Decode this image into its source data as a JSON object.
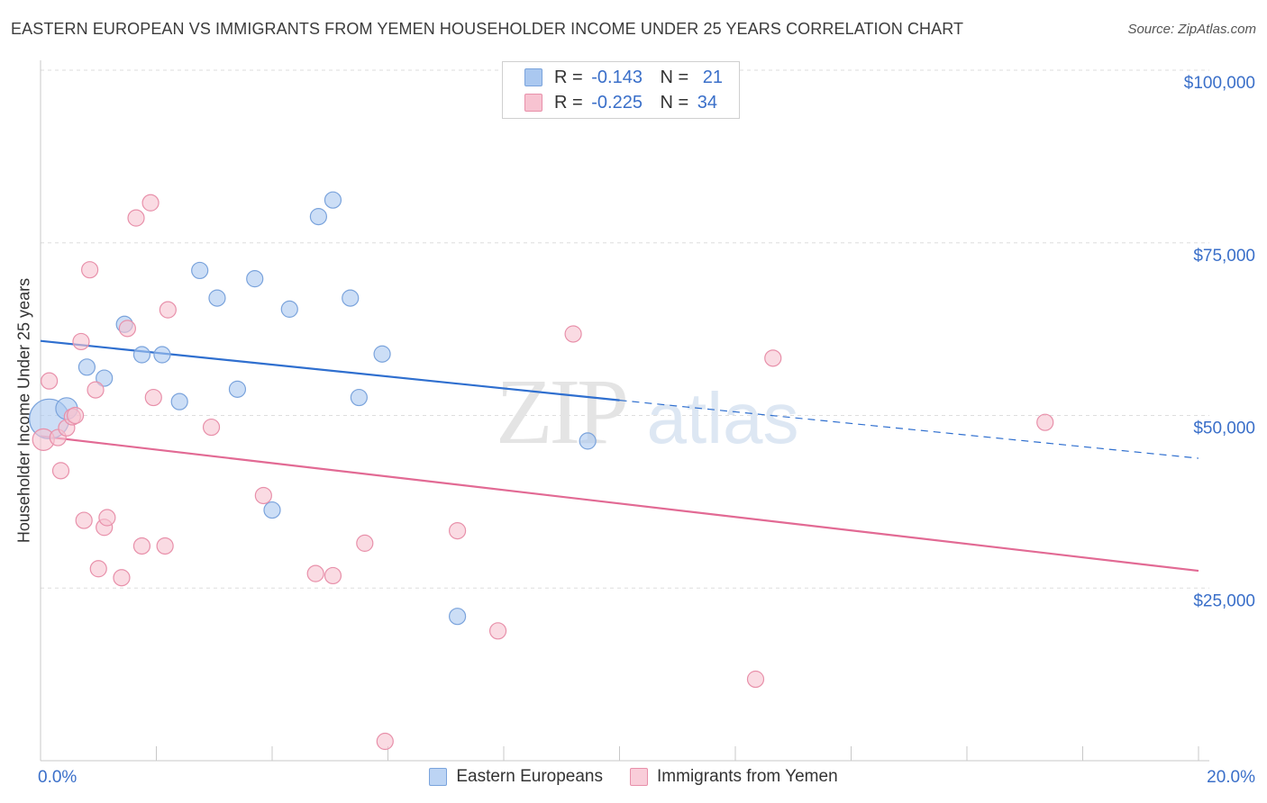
{
  "title": "EASTERN EUROPEAN VS IMMIGRANTS FROM YEMEN HOUSEHOLDER INCOME UNDER 25 YEARS CORRELATION CHART",
  "source": "Source: ZipAtlas.com",
  "watermark": {
    "zip": "ZIP",
    "atlas": "atlas"
  },
  "stats": [
    {
      "r_label": "R =",
      "r_value": "-0.143",
      "n_label": "N =",
      "n_value": "21",
      "color": "#aac8f0",
      "border": "#7aa3dc"
    },
    {
      "r_label": "R =",
      "r_value": "-0.225",
      "n_label": "N =",
      "n_value": "34",
      "color": "#f7c3d1",
      "border": "#e890aa"
    }
  ],
  "legend": [
    {
      "label": "Eastern Europeans",
      "color": "#bcd4f4",
      "border": "#7aa3dc"
    },
    {
      "label": "Immigrants from Yemen",
      "color": "#f9cdd9",
      "border": "#e890aa"
    }
  ],
  "chart_data": {
    "type": "scatter",
    "ylabel": "Householder Income Under 25 years",
    "xlim": [
      0,
      20
    ],
    "ylim": [
      0,
      100000
    ],
    "x_tick_labels": [
      "0.0%",
      "20.0%"
    ],
    "y_ticks": [
      25000,
      50000,
      75000,
      100000
    ],
    "y_tick_labels": [
      "$25,000",
      "$50,000",
      "$75,000",
      "$100,000"
    ],
    "grid": true,
    "series": [
      {
        "name": "Eastern Europeans",
        "color": "#aac8f0",
        "stroke": "#7aa3dc",
        "line_color": "#2f6fcf",
        "trend": {
          "x0": 0,
          "y0": 60800,
          "x1": 10,
          "y1": 52200,
          "dash_to_x": 20,
          "dash_to_y": 43800
        },
        "points": [
          [
            0.15,
            49500,
            22
          ],
          [
            0.45,
            51000,
            12
          ],
          [
            0.8,
            57000,
            9
          ],
          [
            1.1,
            55400,
            9
          ],
          [
            1.45,
            63200,
            9
          ],
          [
            1.75,
            58800,
            9
          ],
          [
            2.1,
            58800,
            9
          ],
          [
            2.4,
            52000,
            9
          ],
          [
            2.75,
            71000,
            9
          ],
          [
            3.05,
            67000,
            9
          ],
          [
            3.4,
            53800,
            9
          ],
          [
            3.7,
            69800,
            9
          ],
          [
            4.0,
            36300,
            9
          ],
          [
            4.3,
            65400,
            9
          ],
          [
            4.8,
            78800,
            9
          ],
          [
            5.05,
            81200,
            9
          ],
          [
            5.35,
            67000,
            9
          ],
          [
            5.5,
            52600,
            9
          ],
          [
            5.9,
            58900,
            9
          ],
          [
            7.2,
            20900,
            9
          ],
          [
            9.45,
            46300,
            9
          ]
        ]
      },
      {
        "name": "Immigrants from Yemen",
        "color": "#f7c3d1",
        "stroke": "#e890aa",
        "line_color": "#e26a94",
        "trend": {
          "x0": 0,
          "y0": 47000,
          "x1": 20,
          "y1": 27500
        },
        "points": [
          [
            0.05,
            46500,
            12
          ],
          [
            0.15,
            55000,
            9
          ],
          [
            0.3,
            46800,
            9
          ],
          [
            0.35,
            42000,
            9
          ],
          [
            0.45,
            48200,
            9
          ],
          [
            0.55,
            49800,
            9
          ],
          [
            0.6,
            50000,
            9
          ],
          [
            0.7,
            60700,
            9
          ],
          [
            0.75,
            34800,
            9
          ],
          [
            0.85,
            71100,
            9
          ],
          [
            0.95,
            53700,
            9
          ],
          [
            1.0,
            27800,
            9
          ],
          [
            1.1,
            33800,
            9
          ],
          [
            1.15,
            35200,
            9
          ],
          [
            1.4,
            26500,
            9
          ],
          [
            1.5,
            62600,
            9
          ],
          [
            1.65,
            78600,
            9
          ],
          [
            1.75,
            31100,
            9
          ],
          [
            1.9,
            80800,
            9
          ],
          [
            1.95,
            52600,
            9
          ],
          [
            2.15,
            31100,
            9
          ],
          [
            2.2,
            65300,
            9
          ],
          [
            2.95,
            48300,
            9
          ],
          [
            3.85,
            38400,
            9
          ],
          [
            4.75,
            27100,
            9
          ],
          [
            5.05,
            26800,
            9
          ],
          [
            5.6,
            31500,
            9
          ],
          [
            5.95,
            2800,
            9
          ],
          [
            7.2,
            33300,
            9
          ],
          [
            7.9,
            18800,
            9
          ],
          [
            9.2,
            61800,
            9
          ],
          [
            12.35,
            11800,
            9
          ],
          [
            12.65,
            58300,
            9
          ],
          [
            17.35,
            49000,
            9
          ]
        ]
      }
    ]
  }
}
